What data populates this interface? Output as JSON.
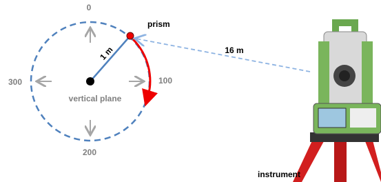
{
  "angle_labels": [
    "0",
    "100",
    "200",
    "300"
  ],
  "prism_label": "prism",
  "radius_label": "1 m",
  "distance_label": "16 m",
  "plane_label": "vertical plane",
  "instrument_label": "instrument"
}
